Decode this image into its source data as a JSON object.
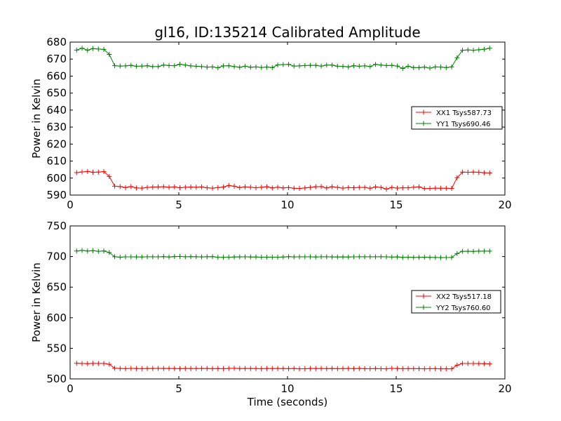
{
  "figure": {
    "title": "gl16, ID:135214 Calibrated Amplitude",
    "xlabel": "Time (seconds)"
  },
  "chart_data": [
    {
      "type": "line",
      "title": "gl16, ID:135214 Calibrated Amplitude",
      "xlabel": "",
      "ylabel": "Power in Kelvin",
      "xlim": [
        0,
        20
      ],
      "ylim": [
        590,
        680
      ],
      "xticks": [
        "0",
        "5",
        "10",
        "15",
        "20"
      ],
      "yticks": [
        "590",
        "600",
        "610",
        "620",
        "630",
        "640",
        "650",
        "660",
        "670",
        "680"
      ],
      "legend_position": "center-right",
      "grid": false,
      "x": [
        0.3,
        0.55,
        0.8,
        1.05,
        1.3,
        1.55,
        1.8,
        2.05,
        2.3,
        2.55,
        2.8,
        3.05,
        3.3,
        3.55,
        3.8,
        4.05,
        4.3,
        4.55,
        4.8,
        5.05,
        5.3,
        5.55,
        5.8,
        6.05,
        6.3,
        6.55,
        6.8,
        7.05,
        7.3,
        7.55,
        7.8,
        8.05,
        8.3,
        8.55,
        8.8,
        9.05,
        9.3,
        9.55,
        9.8,
        10.05,
        10.3,
        10.55,
        10.8,
        11.05,
        11.3,
        11.55,
        11.8,
        12.05,
        12.3,
        12.55,
        12.8,
        13.05,
        13.3,
        13.55,
        13.8,
        14.05,
        14.3,
        14.55,
        14.8,
        15.05,
        15.3,
        15.55,
        15.8,
        16.05,
        16.3,
        16.55,
        16.8,
        17.05,
        17.3,
        17.55,
        17.8,
        18.05,
        18.3,
        18.55,
        18.8,
        19.05,
        19.3
      ],
      "series": [
        {
          "name": "XX1 Tsys587.73",
          "color": "#ff0000",
          "values": [
            603.2,
            603.6,
            603.9,
            603.4,
            603.5,
            603.8,
            601.0,
            595.2,
            595.0,
            594.4,
            595.0,
            594.2,
            594.1,
            594.5,
            594.7,
            594.8,
            594.9,
            594.6,
            594.8,
            594.3,
            594.6,
            594.7,
            594.6,
            594.8,
            594.3,
            594.1,
            594.4,
            594.7,
            595.6,
            595.2,
            594.4,
            594.8,
            594.6,
            594.3,
            594.6,
            594.9,
            594.2,
            594.6,
            594.2,
            594.4,
            594.0,
            593.9,
            594.2,
            594.5,
            594.9,
            595.0,
            594.2,
            594.9,
            594.5,
            594.1,
            594.4,
            594.3,
            594.5,
            594.5,
            594.0,
            594.8,
            594.5,
            593.5,
            594.5,
            594.1,
            594.3,
            594.3,
            594.6,
            594.8,
            593.8,
            593.9,
            594.1,
            594.0,
            594.0,
            593.9,
            600.2,
            603.5,
            603.4,
            603.5,
            603.4,
            603.1,
            603.0
          ]
        },
        {
          "name": "YY1 Tsys690.46",
          "color": "#008000",
          "values": [
            675.3,
            676.4,
            675.2,
            676.2,
            675.9,
            675.7,
            672.8,
            666.1,
            665.9,
            666.0,
            666.3,
            665.8,
            665.9,
            666.1,
            665.6,
            665.6,
            666.5,
            666.2,
            666.1,
            667.0,
            666.5,
            666.0,
            665.8,
            665.6,
            665.3,
            665.4,
            664.9,
            666.0,
            666.1,
            665.6,
            665.2,
            665.8,
            665.2,
            665.4,
            665.1,
            665.3,
            665.0,
            666.6,
            666.8,
            666.9,
            665.9,
            666.0,
            666.2,
            666.3,
            666.3,
            665.9,
            666.5,
            666.5,
            665.8,
            665.7,
            665.4,
            666.1,
            665.8,
            666.0,
            665.6,
            666.9,
            666.5,
            666.2,
            666.3,
            665.9,
            664.5,
            665.8,
            665.0,
            665.0,
            665.3,
            664.7,
            665.4,
            665.3,
            665.0,
            665.4,
            670.8,
            675.2,
            675.4,
            675.2,
            675.5,
            675.8,
            676.4
          ]
        }
      ]
    },
    {
      "type": "line",
      "title": "",
      "xlabel": "Time (seconds)",
      "ylabel": "Power in Kelvin",
      "xlim": [
        0,
        20
      ],
      "ylim": [
        500,
        750
      ],
      "xticks": [
        "0",
        "5",
        "10",
        "15",
        "20"
      ],
      "yticks": [
        "500",
        "550",
        "600",
        "650",
        "700",
        "750"
      ],
      "legend_position": "center-right",
      "grid": false,
      "x": [
        0.3,
        0.55,
        0.8,
        1.05,
        1.3,
        1.55,
        1.8,
        2.05,
        2.3,
        2.55,
        2.8,
        3.05,
        3.3,
        3.55,
        3.8,
        4.05,
        4.3,
        4.55,
        4.8,
        5.05,
        5.3,
        5.55,
        5.8,
        6.05,
        6.3,
        6.55,
        6.8,
        7.05,
        7.3,
        7.55,
        7.8,
        8.05,
        8.3,
        8.55,
        8.8,
        9.05,
        9.3,
        9.55,
        9.8,
        10.05,
        10.3,
        10.55,
        10.8,
        11.05,
        11.3,
        11.55,
        11.8,
        12.05,
        12.3,
        12.55,
        12.8,
        13.05,
        13.3,
        13.55,
        13.8,
        14.05,
        14.3,
        14.55,
        14.8,
        15.05,
        15.3,
        15.55,
        15.8,
        16.05,
        16.3,
        16.55,
        16.8,
        17.05,
        17.3,
        17.55,
        17.8,
        18.05,
        18.3,
        18.55,
        18.8,
        19.05,
        19.3
      ],
      "series": [
        {
          "name": "XX2 Tsys517.18",
          "color": "#ff0000",
          "values": [
            525.5,
            525.3,
            525.0,
            525.4,
            525.3,
            525.3,
            524.0,
            517.4,
            517.1,
            516.8,
            517.2,
            516.9,
            516.8,
            517.0,
            517.0,
            517.2,
            517.0,
            517.0,
            517.0,
            516.8,
            517.0,
            516.9,
            517.0,
            517.0,
            517.0,
            516.8,
            516.9,
            516.6,
            517.1,
            517.3,
            516.9,
            517.0,
            517.0,
            516.9,
            516.7,
            517.0,
            516.9,
            517.0,
            516.9,
            516.8,
            517.0,
            516.5,
            516.6,
            517.0,
            516.9,
            517.0,
            516.8,
            517.0,
            516.8,
            516.9,
            517.0,
            516.8,
            517.0,
            516.8,
            516.6,
            516.9,
            516.6,
            516.5,
            517.2,
            516.9,
            516.6,
            516.8,
            516.8,
            516.8,
            516.5,
            516.7,
            516.8,
            516.5,
            516.5,
            516.5,
            522.5,
            525.2,
            525.2,
            525.2,
            525.1,
            525.0,
            524.5
          ]
        },
        {
          "name": "YY2 Tsys760.60",
          "color": "#008000",
          "values": [
            709.0,
            710.0,
            709.0,
            709.6,
            708.6,
            709.2,
            706.5,
            699.7,
            699.0,
            699.5,
            699.5,
            699.4,
            699.3,
            699.6,
            699.6,
            699.5,
            699.9,
            699.2,
            699.9,
            700.1,
            699.6,
            699.8,
            699.7,
            699.4,
            699.7,
            699.8,
            698.8,
            698.7,
            698.9,
            699.2,
            699.4,
            699.6,
            699.2,
            699.2,
            698.9,
            699.0,
            699.0,
            698.9,
            699.2,
            699.8,
            699.4,
            699.6,
            699.5,
            699.6,
            699.3,
            699.6,
            699.6,
            699.4,
            699.3,
            699.4,
            699.3,
            699.5,
            699.7,
            699.6,
            699.6,
            699.6,
            699.7,
            699.5,
            699.1,
            699.4,
            698.6,
            698.8,
            698.6,
            698.7,
            698.8,
            698.6,
            698.5,
            698.3,
            698.4,
            698.5,
            704.8,
            708.6,
            708.6,
            708.4,
            708.8,
            708.8,
            708.8
          ]
        }
      ]
    }
  ]
}
